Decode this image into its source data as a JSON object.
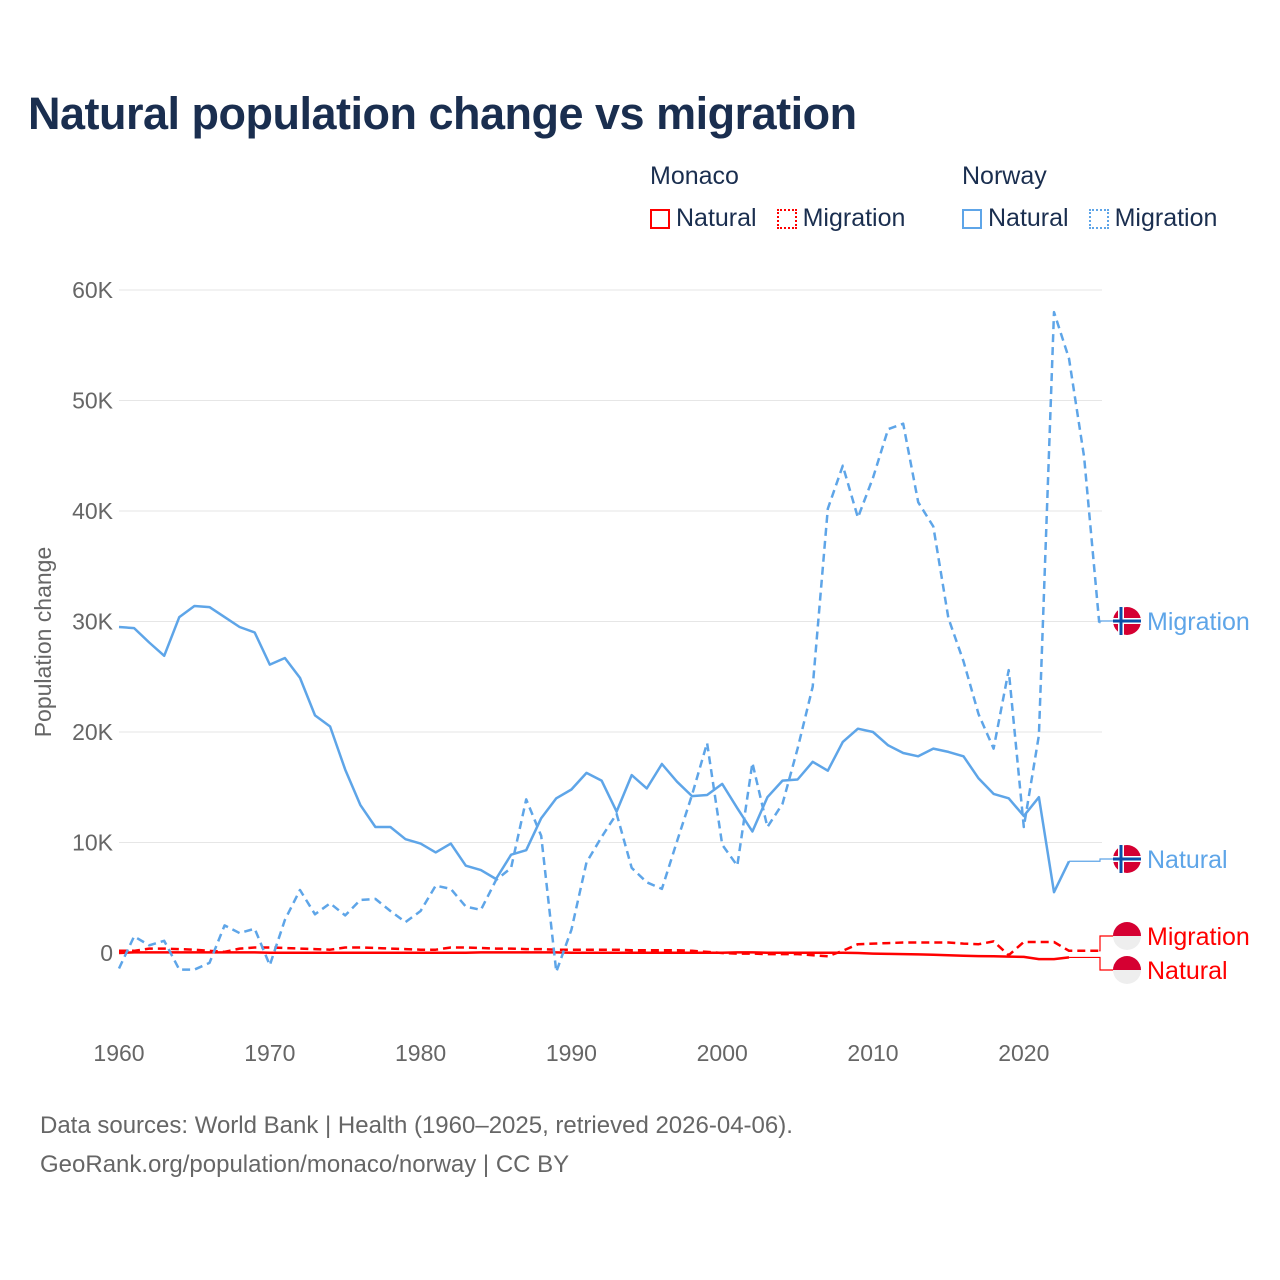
{
  "title": "Natural population change vs migration",
  "legend": {
    "groups": [
      {
        "name": "Monaco",
        "items": [
          {
            "label": "Natural",
            "style": "solid"
          },
          {
            "label": "Migration",
            "style": "dotted"
          }
        ],
        "color": "#ff0000"
      },
      {
        "name": "Norway",
        "items": [
          {
            "label": "Natural",
            "style": "solid"
          },
          {
            "label": "Migration",
            "style": "dotted"
          }
        ],
        "color": "#5ea5e8"
      }
    ]
  },
  "footer": {
    "line1": "Data sources: World Bank | Health (1960–2025, retrieved 2026-04-06).",
    "line2": "GeoRank.org/population/monaco/norway | CC BY"
  },
  "chart_data": {
    "type": "line",
    "title": "Natural population change vs migration",
    "ylabel": "Population change",
    "xlabel": "",
    "unit": "thousands",
    "ylim": [
      -6,
      60
    ],
    "xlim": [
      1960,
      2025
    ],
    "yticks": [
      {
        "v": 0,
        "label": "0"
      },
      {
        "v": 10,
        "label": "10K"
      },
      {
        "v": 20,
        "label": "20K"
      },
      {
        "v": 30,
        "label": "30K"
      },
      {
        "v": 40,
        "label": "40K"
      },
      {
        "v": 50,
        "label": "50K"
      },
      {
        "v": 60,
        "label": "60K"
      }
    ],
    "xticks": [
      "1960",
      "1970",
      "1980",
      "1990",
      "2000",
      "2010",
      "2020"
    ],
    "grid": true,
    "x_start": 1960,
    "series": [
      {
        "name": "Norway Natural",
        "end_label": "Natural",
        "country": "Norway",
        "color": "#5ea5e8",
        "dash": "solid",
        "values": [
          29.5,
          29.4,
          28.1,
          26.9,
          30.4,
          31.4,
          31.3,
          30.4,
          29.5,
          29.0,
          26.1,
          26.7,
          24.9,
          21.5,
          20.5,
          16.6,
          13.4,
          11.4,
          11.4,
          10.3,
          9.9,
          9.1,
          9.9,
          7.9,
          7.5,
          6.7,
          8.9,
          9.3,
          12.2,
          14.0,
          14.8,
          16.3,
          15.6,
          12.8,
          16.1,
          14.9,
          17.1,
          15.5,
          14.2,
          14.3,
          15.3,
          13.1,
          11.0,
          14.1,
          15.6,
          15.7,
          17.3,
          16.5,
          19.1,
          20.3,
          20.0,
          18.8,
          18.1,
          17.8,
          18.5,
          18.2,
          17.8,
          15.8,
          14.4,
          14.0,
          12.4,
          14.1,
          5.5,
          8.3,
          null,
          null
        ]
      },
      {
        "name": "Norway Migration",
        "end_label": "Migration",
        "country": "Norway",
        "color": "#5ea5e8",
        "dash": "dashed",
        "values": [
          -1.4,
          1.5,
          0.7,
          1.1,
          -1.5,
          -1.5,
          -0.9,
          2.5,
          1.8,
          2.2,
          -1.1,
          3.0,
          5.7,
          3.5,
          4.5,
          3.4,
          4.8,
          4.9,
          3.8,
          2.8,
          3.8,
          6.1,
          5.8,
          4.2,
          3.9,
          6.6,
          7.7,
          13.9,
          10.6,
          -1.7,
          2.1,
          8.2,
          10.5,
          12.6,
          7.7,
          6.4,
          5.8,
          10.1,
          14.3,
          19.0,
          9.8,
          7.9,
          17.2,
          11.4,
          13.5,
          18.5,
          24.1,
          40.2,
          44.1,
          39.4,
          43.0,
          47.4,
          47.9,
          40.8,
          38.6,
          30.3,
          26.4,
          21.6,
          18.5,
          25.6,
          11.4,
          19.7,
          58.0,
          53.8,
          44.9,
          29.9
        ]
      },
      {
        "name": "Monaco Natural",
        "end_label": "Natural",
        "country": "Monaco",
        "color": "#ff0000",
        "dash": "solid",
        "values": [
          0.0,
          0.05,
          0.05,
          0.05,
          0.05,
          0.05,
          0.05,
          0.05,
          0.05,
          0.05,
          0.03,
          0.03,
          0.03,
          0.03,
          0.03,
          0.03,
          0.03,
          0.03,
          0.03,
          0.03,
          0.03,
          0.03,
          0.03,
          0.03,
          0.05,
          0.05,
          0.05,
          0.05,
          0.05,
          0.05,
          0.03,
          0.03,
          0.03,
          0.03,
          0.03,
          0.03,
          0.03,
          0.03,
          0.03,
          0.03,
          0.03,
          0.05,
          0.05,
          0.03,
          0.03,
          0.03,
          0.03,
          0.03,
          0.03,
          0.0,
          -0.05,
          -0.08,
          -0.1,
          -0.13,
          -0.15,
          -0.2,
          -0.25,
          -0.28,
          -0.3,
          -0.33,
          -0.35,
          -0.55,
          -0.55,
          -0.4,
          null,
          null
        ]
      },
      {
        "name": "Monaco Migration",
        "end_label": "Migration",
        "country": "Monaco",
        "color": "#ff0000",
        "dash": "dashed",
        "values": [
          0.2,
          0.2,
          0.4,
          0.4,
          0.35,
          0.3,
          0.2,
          0.1,
          0.4,
          0.5,
          0.5,
          0.45,
          0.4,
          0.35,
          0.3,
          0.5,
          0.5,
          0.45,
          0.4,
          0.35,
          0.3,
          0.3,
          0.5,
          0.5,
          0.45,
          0.4,
          0.4,
          0.35,
          0.35,
          0.3,
          0.3,
          0.3,
          0.3,
          0.3,
          0.25,
          0.25,
          0.25,
          0.25,
          0.2,
          0.1,
          0.0,
          -0.05,
          -0.05,
          -0.1,
          -0.1,
          -0.1,
          -0.2,
          -0.3,
          0.2,
          0.8,
          0.85,
          0.9,
          0.95,
          0.95,
          0.95,
          0.95,
          0.85,
          0.8,
          1.05,
          -0.2,
          1.0,
          1.0,
          1.0,
          0.2,
          0.2,
          0.2
        ]
      }
    ]
  }
}
